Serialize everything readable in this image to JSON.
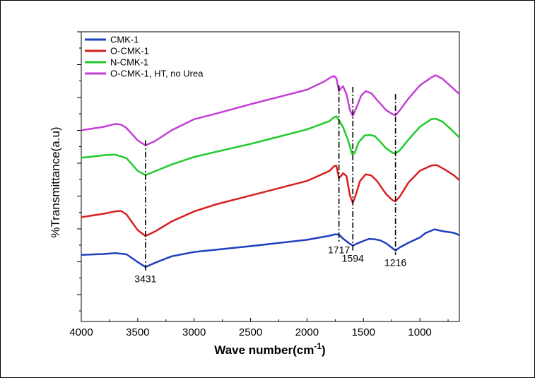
{
  "chart_data": {
    "type": "line",
    "xlabel": "Wave number(cm",
    "xlabel_sup": "-1",
    "xlabel_close": ")",
    "ylabel": "%Transmittance(a.u)",
    "xlim": [
      4000,
      650
    ],
    "ylim": [
      0,
      10
    ],
    "x_ticks": [
      4000,
      3500,
      3000,
      2500,
      2000,
      1500,
      1000
    ],
    "y_tick_count": 9,
    "legend": {
      "placement": "top-left"
    },
    "series": [
      {
        "name": "CMK-1",
        "color": "#1f3fbf",
        "points": [
          [
            4000,
            2.3
          ],
          [
            3800,
            2.33
          ],
          [
            3700,
            2.36
          ],
          [
            3600,
            2.32
          ],
          [
            3500,
            2.05
          ],
          [
            3431,
            1.88
          ],
          [
            3350,
            2.02
          ],
          [
            3200,
            2.25
          ],
          [
            3000,
            2.4
          ],
          [
            2500,
            2.6
          ],
          [
            2000,
            2.82
          ],
          [
            1800,
            2.96
          ],
          [
            1750,
            3.01
          ],
          [
            1717,
            3.0
          ],
          [
            1680,
            2.86
          ],
          [
            1620,
            2.68
          ],
          [
            1594,
            2.62
          ],
          [
            1550,
            2.7
          ],
          [
            1500,
            2.78
          ],
          [
            1450,
            2.85
          ],
          [
            1400,
            2.84
          ],
          [
            1350,
            2.8
          ],
          [
            1300,
            2.7
          ],
          [
            1250,
            2.55
          ],
          [
            1216,
            2.45
          ],
          [
            1180,
            2.55
          ],
          [
            1100,
            2.72
          ],
          [
            1000,
            2.9
          ],
          [
            950,
            3.05
          ],
          [
            870,
            3.18
          ],
          [
            800,
            3.12
          ],
          [
            700,
            3.06
          ],
          [
            650,
            2.98
          ]
        ]
      },
      {
        "name": "O-CMK-1",
        "color": "#d91f1f",
        "points": [
          [
            4000,
            3.6
          ],
          [
            3800,
            3.72
          ],
          [
            3700,
            3.8
          ],
          [
            3650,
            3.82
          ],
          [
            3600,
            3.7
          ],
          [
            3500,
            3.15
          ],
          [
            3431,
            2.95
          ],
          [
            3350,
            3.1
          ],
          [
            3200,
            3.45
          ],
          [
            3000,
            3.8
          ],
          [
            2800,
            4.05
          ],
          [
            2500,
            4.35
          ],
          [
            2000,
            4.85
          ],
          [
            1800,
            5.2
          ],
          [
            1760,
            5.36
          ],
          [
            1740,
            5.38
          ],
          [
            1717,
            4.95
          ],
          [
            1700,
            5.02
          ],
          [
            1680,
            5.12
          ],
          [
            1650,
            5.02
          ],
          [
            1620,
            4.35
          ],
          [
            1594,
            4.1
          ],
          [
            1570,
            4.35
          ],
          [
            1530,
            4.85
          ],
          [
            1480,
            5.08
          ],
          [
            1430,
            5.04
          ],
          [
            1380,
            4.85
          ],
          [
            1300,
            4.4
          ],
          [
            1240,
            4.18
          ],
          [
            1216,
            4.15
          ],
          [
            1180,
            4.3
          ],
          [
            1100,
            4.8
          ],
          [
            1000,
            5.2
          ],
          [
            900,
            5.38
          ],
          [
            850,
            5.4
          ],
          [
            780,
            5.25
          ],
          [
            700,
            5.05
          ],
          [
            650,
            4.88
          ]
        ]
      },
      {
        "name": "N-CMK-1",
        "color": "#1fcc2a",
        "points": [
          [
            4000,
            5.65
          ],
          [
            3800,
            5.74
          ],
          [
            3700,
            5.76
          ],
          [
            3600,
            5.64
          ],
          [
            3500,
            5.2
          ],
          [
            3431,
            5.05
          ],
          [
            3350,
            5.18
          ],
          [
            3200,
            5.42
          ],
          [
            3000,
            5.68
          ],
          [
            2800,
            5.86
          ],
          [
            2500,
            6.13
          ],
          [
            2000,
            6.63
          ],
          [
            1800,
            6.92
          ],
          [
            1760,
            7.05
          ],
          [
            1740,
            7.08
          ],
          [
            1717,
            6.95
          ],
          [
            1680,
            6.7
          ],
          [
            1640,
            6.3
          ],
          [
            1600,
            5.78
          ],
          [
            1580,
            5.8
          ],
          [
            1540,
            6.2
          ],
          [
            1490,
            6.42
          ],
          [
            1440,
            6.44
          ],
          [
            1400,
            6.4
          ],
          [
            1350,
            6.2
          ],
          [
            1300,
            5.98
          ],
          [
            1240,
            5.82
          ],
          [
            1216,
            5.8
          ],
          [
            1180,
            5.9
          ],
          [
            1100,
            6.28
          ],
          [
            1000,
            6.72
          ],
          [
            900,
            6.98
          ],
          [
            860,
            7.0
          ],
          [
            800,
            6.9
          ],
          [
            720,
            6.62
          ],
          [
            650,
            6.35
          ]
        ]
      },
      {
        "name": "O-CMK-1, HT, no Urea",
        "color": "#c43fd6",
        "points": [
          [
            4000,
            6.6
          ],
          [
            3800,
            6.72
          ],
          [
            3700,
            6.82
          ],
          [
            3650,
            6.8
          ],
          [
            3600,
            6.68
          ],
          [
            3500,
            6.25
          ],
          [
            3431,
            6.08
          ],
          [
            3350,
            6.22
          ],
          [
            3200,
            6.6
          ],
          [
            3000,
            6.98
          ],
          [
            2800,
            7.18
          ],
          [
            2500,
            7.5
          ],
          [
            2000,
            8.0
          ],
          [
            1850,
            8.28
          ],
          [
            1780,
            8.45
          ],
          [
            1760,
            8.47
          ],
          [
            1740,
            8.4
          ],
          [
            1717,
            7.95
          ],
          [
            1700,
            8.05
          ],
          [
            1680,
            8.12
          ],
          [
            1650,
            7.85
          ],
          [
            1620,
            7.3
          ],
          [
            1594,
            7.1
          ],
          [
            1560,
            7.4
          ],
          [
            1520,
            7.8
          ],
          [
            1480,
            7.95
          ],
          [
            1430,
            7.88
          ],
          [
            1380,
            7.65
          ],
          [
            1300,
            7.3
          ],
          [
            1240,
            7.15
          ],
          [
            1216,
            7.12
          ],
          [
            1180,
            7.28
          ],
          [
            1100,
            7.7
          ],
          [
            1000,
            8.15
          ],
          [
            900,
            8.42
          ],
          [
            860,
            8.5
          ],
          [
            800,
            8.38
          ],
          [
            720,
            8.1
          ],
          [
            650,
            7.85
          ]
        ]
      }
    ],
    "peaks": [
      {
        "x": 3431,
        "label": "3431",
        "y_top": 6.25,
        "y_bottom": 1.75
      },
      {
        "x": 1717,
        "label": "1717",
        "y_top": 8.15,
        "y_bottom": 2.75
      },
      {
        "x": 1594,
        "label": "1594",
        "y_top": 8.1,
        "y_bottom": 2.45
      },
      {
        "x": 1216,
        "label": "1216",
        "y_top": 7.85,
        "y_bottom": 2.3
      }
    ]
  }
}
